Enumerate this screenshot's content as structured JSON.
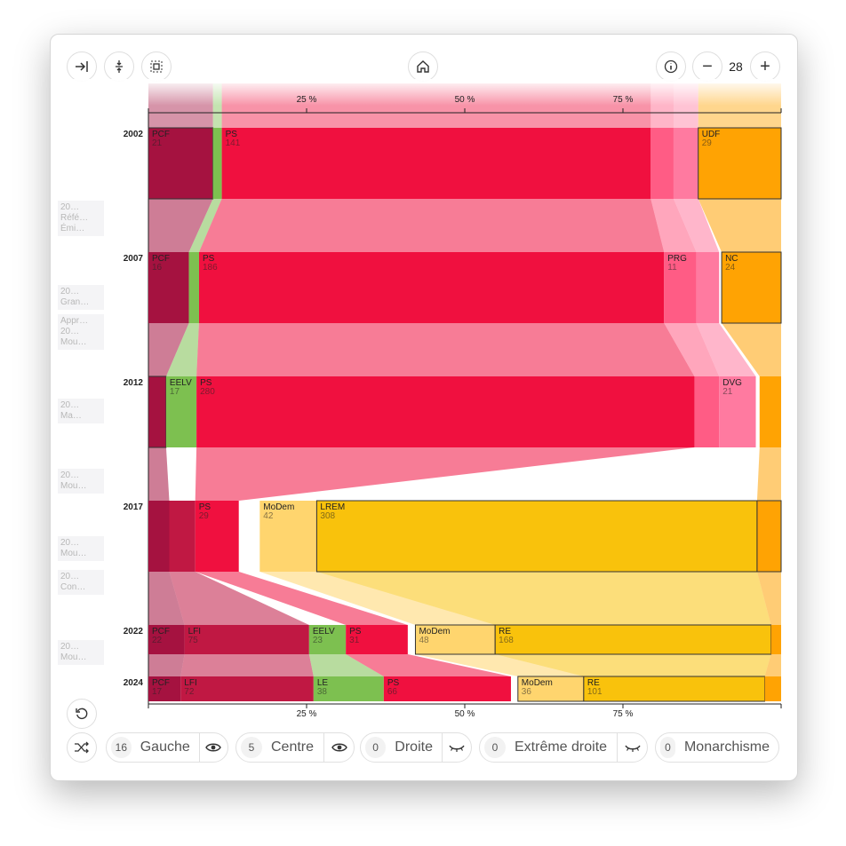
{
  "toolbar": {
    "left_buttons": [
      "collapse-sidebar-icon",
      "expand-vertical-icon",
      "fit-frame-icon"
    ],
    "home_icon": "home-icon",
    "info_icon": "info-icon",
    "zoom": {
      "value": "28",
      "minus": "−",
      "plus": "+"
    }
  },
  "sidebar_labels": [
    "20…\nRéfé…\nÉmi…",
    "20…\nGran…",
    "Appr…\n20…\nMou…",
    "20…\nMa…",
    "20…\nMou…",
    "20…\nMou…",
    "20…\nCon…",
    "20…\nMou…"
  ],
  "reset_icon": "reset-icon",
  "shuffle_icon": "shuffle-icon",
  "filters": [
    {
      "count": "16",
      "label": "Gauche",
      "visible": true
    },
    {
      "count": "5",
      "label": "Centre",
      "visible": true
    },
    {
      "count": "0",
      "label": "Droite",
      "visible": false
    },
    {
      "count": "0",
      "label": "Extrême droite",
      "visible": false
    },
    {
      "count": "0",
      "label": "Monarchisme",
      "visible": false
    }
  ],
  "colors": {
    "pcf": "#a51240",
    "lfi": "#c01843",
    "ps": "#f0103f",
    "prg": "#ff5c85",
    "dvg": "#ff7aa0",
    "eelv": "#7dc050",
    "modem": "#ffd56e",
    "lrem": "#f9c20c",
    "udf": "#ffa303",
    "nc": "#ffa303"
  },
  "chart_data": {
    "type": "bar",
    "orientation": "horizontal-stacked-flow",
    "x_ticks": [
      "25 %",
      "50 %",
      "75 %"
    ],
    "xlim": [
      0,
      100
    ],
    "years": [
      {
        "year": "2002",
        "parties": [
          {
            "name": "PCF",
            "seats": 21,
            "start": 0,
            "end": 10.2,
            "color": "#a51240",
            "outline": true
          },
          {
            "name": "",
            "seats": 3,
            "start": 10.2,
            "end": 11.6,
            "color": "#7dc050"
          },
          {
            "name": "PS",
            "seats": 141,
            "start": 11.6,
            "end": 79.4,
            "color": "#f0103f"
          },
          {
            "name": "",
            "seats": 6,
            "start": 79.4,
            "end": 83.0,
            "color": "#ff5c85"
          },
          {
            "name": "",
            "seats": 3,
            "start": 83.0,
            "end": 86.9,
            "color": "#ff7aa0"
          },
          {
            "name": "UDF",
            "seats": 29,
            "start": 86.9,
            "end": 100,
            "color": "#ffa303",
            "outline": true
          }
        ]
      },
      {
        "year": "2007",
        "parties": [
          {
            "name": "PCF",
            "seats": 16,
            "start": 0,
            "end": 6.4,
            "color": "#a51240"
          },
          {
            "name": "",
            "seats": 4,
            "start": 6.4,
            "end": 8.0,
            "color": "#7dc050"
          },
          {
            "name": "PS",
            "seats": 186,
            "start": 8.0,
            "end": 81.5,
            "color": "#f0103f"
          },
          {
            "name": "PRG",
            "seats": 11,
            "start": 81.5,
            "end": 86.6,
            "color": "#ff5c85"
          },
          {
            "name": "",
            "seats": 6,
            "start": 86.6,
            "end": 90.2,
            "color": "#ff7aa0"
          },
          {
            "name": "NC",
            "seats": 24,
            "start": 90.6,
            "end": 100,
            "color": "#ffa303",
            "outline": true
          }
        ]
      },
      {
        "year": "2012",
        "parties": [
          {
            "name": "",
            "seats": 10,
            "start": 0,
            "end": 2.8,
            "color": "#a51240",
            "outline": true
          },
          {
            "name": "EELV",
            "seats": 17,
            "start": 2.8,
            "end": 7.6,
            "color": "#7dc050"
          },
          {
            "name": "PS",
            "seats": 280,
            "start": 7.6,
            "end": 86.3,
            "color": "#f0103f"
          },
          {
            "name": "",
            "seats": 12,
            "start": 86.3,
            "end": 90.2,
            "color": "#ff5c85"
          },
          {
            "name": "DVG",
            "seats": 21,
            "start": 90.2,
            "end": 96.0,
            "color": "#ff7aa0"
          },
          {
            "name": "",
            "seats": 12,
            "start": 96.6,
            "end": 100,
            "color": "#ffa303"
          }
        ]
      },
      {
        "year": "2017",
        "parties": [
          {
            "name": "",
            "seats": 10,
            "start": 0,
            "end": 3.3,
            "color": "#a51240"
          },
          {
            "name": "",
            "seats": 14,
            "start": 3.3,
            "end": 7.4,
            "color": "#c01843"
          },
          {
            "name": "PS",
            "seats": 29,
            "start": 7.4,
            "end": 14.3,
            "color": "#f0103f"
          },
          {
            "name": "",
            "seats": 9,
            "start": 14.3,
            "end": 17.6,
            "color": "#ffffff"
          },
          {
            "name": "MoDem",
            "seats": 42,
            "start": 17.6,
            "end": 26.6,
            "color": "#ffd56e"
          },
          {
            "name": "LREM",
            "seats": 308,
            "start": 26.6,
            "end": 96.2,
            "color": "#f9c20c",
            "outline": true
          },
          {
            "name": "",
            "seats": 10,
            "start": 96.2,
            "end": 100,
            "color": "#ffa303",
            "outline": true
          }
        ]
      },
      {
        "year": "2022",
        "parties": [
          {
            "name": "PCF",
            "seats": 22,
            "start": 0,
            "end": 5.7,
            "color": "#a51240"
          },
          {
            "name": "LFI",
            "seats": 75,
            "start": 5.7,
            "end": 25.4,
            "color": "#c01843"
          },
          {
            "name": "EELV",
            "seats": 23,
            "start": 25.4,
            "end": 31.2,
            "color": "#7dc050"
          },
          {
            "name": "PS",
            "seats": 31,
            "start": 31.2,
            "end": 41.0,
            "color": "#f0103f"
          },
          {
            "name": "",
            "seats": 3,
            "start": 41.0,
            "end": 42.2,
            "color": "#ffffff"
          },
          {
            "name": "MoDem",
            "seats": 48,
            "start": 42.2,
            "end": 54.8,
            "color": "#ffd56e",
            "outline": true
          },
          {
            "name": "RE",
            "seats": 168,
            "start": 54.8,
            "end": 98.4,
            "color": "#f9c20c",
            "outline": true
          },
          {
            "name": "",
            "seats": 6,
            "start": 98.4,
            "end": 100,
            "color": "#ffa303"
          }
        ]
      },
      {
        "year": "2024",
        "parties": [
          {
            "name": "PCF",
            "seats": 17,
            "start": 0,
            "end": 5.1,
            "color": "#a51240"
          },
          {
            "name": "LFI",
            "seats": 72,
            "start": 5.1,
            "end": 26.1,
            "color": "#c01843"
          },
          {
            "name": "LE",
            "seats": 38,
            "start": 26.1,
            "end": 37.2,
            "color": "#7dc050"
          },
          {
            "name": "PS",
            "seats": 66,
            "start": 37.2,
            "end": 57.3,
            "color": "#f0103f"
          },
          {
            "name": "",
            "seats": 2,
            "start": 57.3,
            "end": 58.4,
            "color": "#ffffff"
          },
          {
            "name": "MoDem",
            "seats": 36,
            "start": 58.4,
            "end": 68.8,
            "color": "#ffd56e",
            "outline": true
          },
          {
            "name": "RE",
            "seats": 101,
            "start": 68.8,
            "end": 97.4,
            "color": "#f9c20c",
            "outline": true
          },
          {
            "name": "",
            "seats": 8,
            "start": 97.4,
            "end": 100,
            "color": "#ffa303"
          }
        ]
      }
    ]
  }
}
